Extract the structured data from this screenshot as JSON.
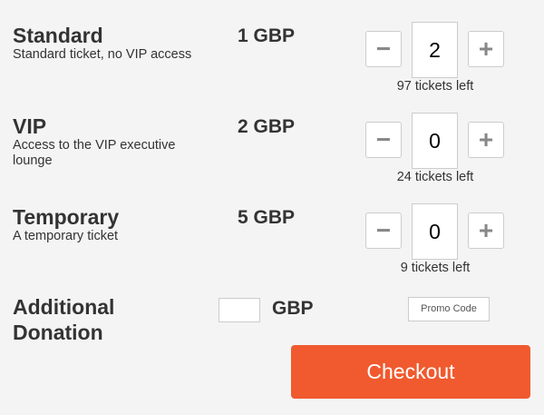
{
  "tickets": [
    {
      "name": "Standard",
      "description": "Standard ticket, no VIP access",
      "price": "1 GBP",
      "quantity": "2",
      "remaining": "97 tickets left"
    },
    {
      "name": "VIP",
      "description": "Access to the VIP executive lounge",
      "price": "2 GBP",
      "quantity": "0",
      "remaining": "24 tickets left"
    },
    {
      "name": "Temporary",
      "description": "A temporary ticket",
      "price": "5 GBP",
      "quantity": "0",
      "remaining": "9 tickets left"
    }
  ],
  "stepper": {
    "minus": "−",
    "plus": "+"
  },
  "donation": {
    "label": "Additional Donation",
    "value": "",
    "currency": "GBP"
  },
  "promo": {
    "label": "Promo Code"
  },
  "checkout": {
    "label": "Checkout",
    "color": "#f05a2e"
  }
}
